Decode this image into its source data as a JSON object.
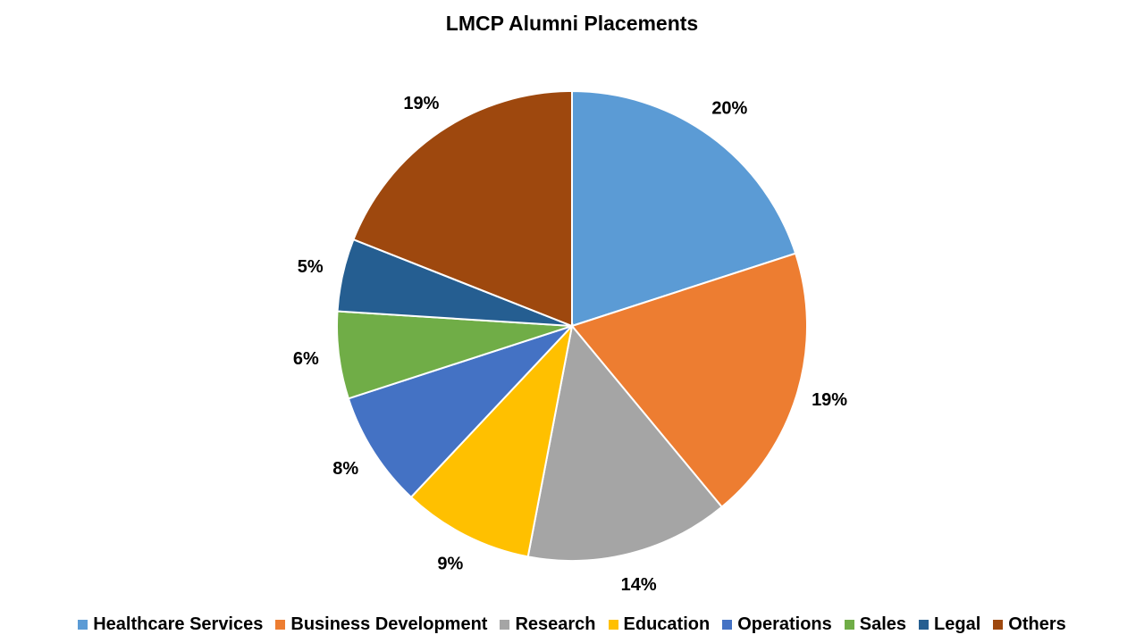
{
  "chart_data": {
    "type": "pie",
    "title": "LMCP Alumni Placements",
    "categories": [
      "Healthcare Services",
      "Business Development",
      "Research",
      "Education",
      "Operations",
      "Sales",
      "Legal",
      "Others"
    ],
    "values": [
      20,
      19,
      14,
      9,
      8,
      6,
      5,
      19
    ],
    "value_labels": [
      "20%",
      "19%",
      "14%",
      "9%",
      "8%",
      "6%",
      "5%",
      "19%"
    ],
    "colors": [
      "#5b9bd5",
      "#ed7d31",
      "#a5a5a5",
      "#ffc000",
      "#4472c4",
      "#70ad47",
      "#255e91",
      "#9e480e"
    ],
    "legend": "bottom"
  }
}
